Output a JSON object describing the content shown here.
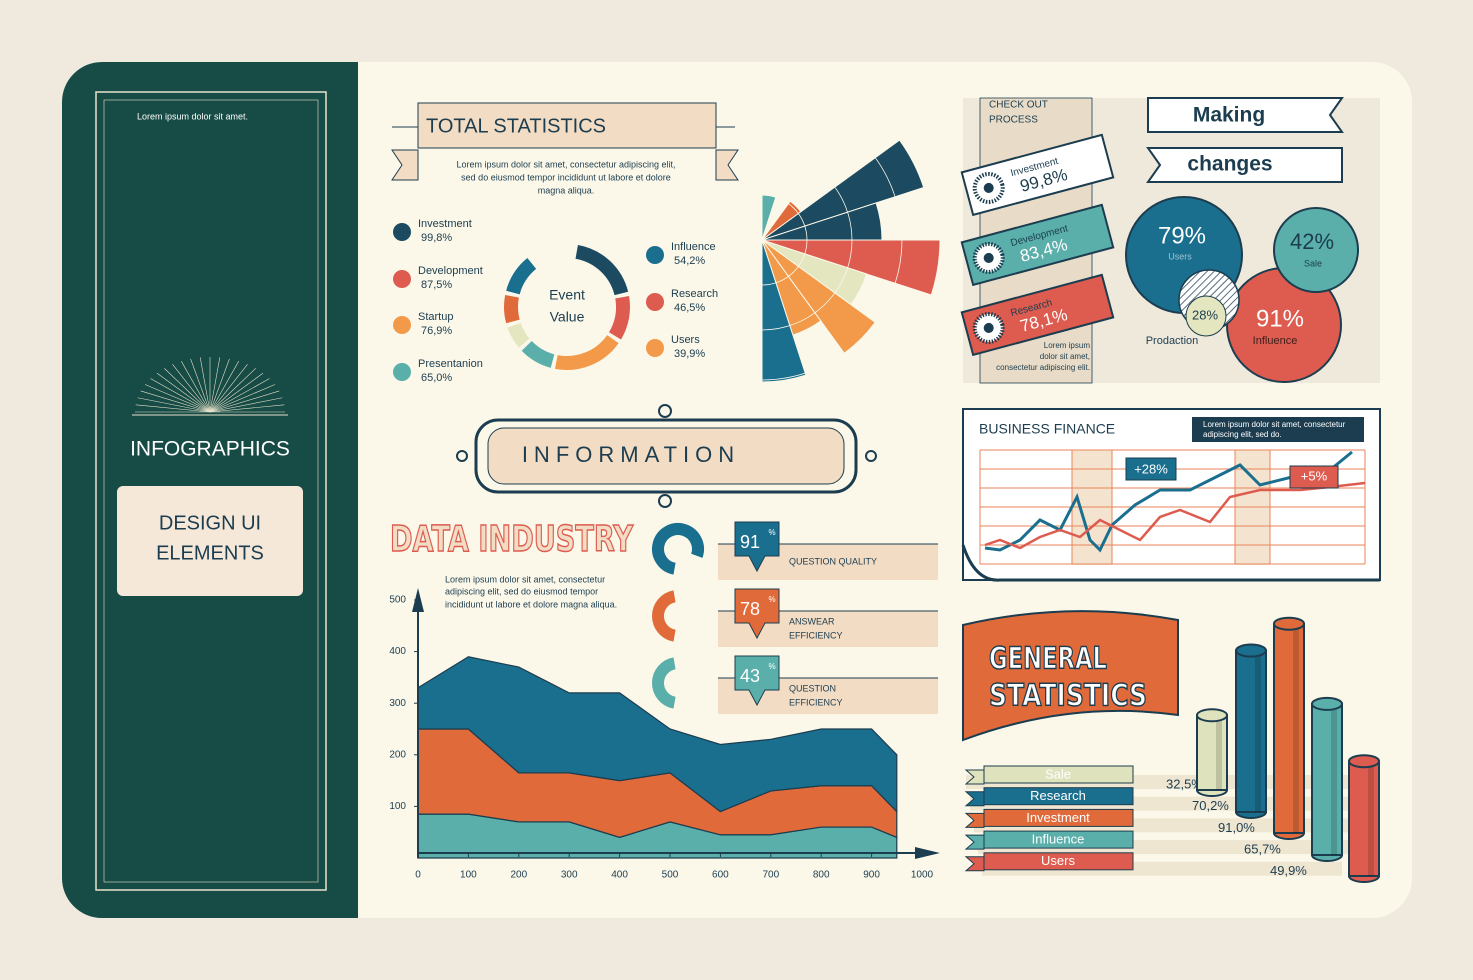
{
  "sidebar": {
    "note": "Lorem ipsum dolor sit amet.",
    "title": "INFOGRAPHICS",
    "button_lines": [
      "DESIGN UI",
      "ELEMENTS"
    ]
  },
  "total_statistics": {
    "title": "TOTAL STATISTICS",
    "text_lines": [
      "Lorem ipsum dolor sit amet, consectetur adipiscing elit,",
      "sed do eiusmod tempor incididunt ut labore et dolore",
      "magna aliqua."
    ],
    "center_lines": [
      "Event",
      "Value"
    ],
    "items": [
      {
        "label": "Investment",
        "value": "99,8%"
      },
      {
        "label": "Development",
        "value": "87,5%"
      },
      {
        "label": "Startup",
        "value": "76,9%"
      },
      {
        "label": "Presentanion",
        "value": "65,0%"
      },
      {
        "label": "Influence",
        "value": "54,2%"
      },
      {
        "label": "Research",
        "value": "46,5%"
      },
      {
        "label": "Users",
        "value": "39,9%"
      }
    ]
  },
  "check_out": {
    "title_lines": [
      "CHECK OUT",
      "PROCESS"
    ],
    "steps": [
      {
        "label": "Investment",
        "value": "99,8%"
      },
      {
        "label": "Development",
        "value": "83,4%"
      },
      {
        "label": "Research",
        "value": "78,1%"
      }
    ],
    "note_lines": [
      "Lorem ipsum",
      "dolor sit amet,",
      "consectetur adipiscing elit."
    ]
  },
  "making_changes": {
    "title_lines": [
      "Making",
      "changes"
    ],
    "circles": [
      {
        "value": "79%",
        "label": "Users"
      },
      {
        "value": "42%",
        "label": "Sale"
      },
      {
        "value": "28%",
        "label": "Prodaction"
      },
      {
        "value": "91%",
        "label": "Influence"
      }
    ]
  },
  "information": {
    "title": "INFORMATION"
  },
  "business_finance": {
    "title": "BUSINESS FINANCE",
    "note_lines": [
      "Lorem ipsum dolor sit amet, consectetur",
      "adipiscing elit, sed do."
    ],
    "annotations": [
      "+28%",
      "+5%"
    ]
  },
  "quality_gauges": [
    {
      "value": "91",
      "unit": "%",
      "label_lines": [
        "QUESTION QUALITY"
      ]
    },
    {
      "value": "78",
      "unit": "%",
      "label_lines": [
        "ANSWEAR",
        "EFFICIENCY"
      ]
    },
    {
      "value": "43",
      "unit": "%",
      "label_lines": [
        "QUESTION",
        "EFFICIENCY"
      ]
    }
  ],
  "chart_data": [
    {
      "type": "area",
      "title": "DATA INDUSTRY",
      "text_lines": [
        "Lorem ipsum dolor sit amet, consectetur",
        "adipiscing elit, sed do eiusmod tempor",
        "incididunt ut labore et dolore magna aliqua."
      ],
      "x": [
        0,
        100,
        200,
        300,
        400,
        500,
        600,
        700,
        800,
        900,
        950
      ],
      "series": [
        {
          "color": "#5aafaa",
          "values": [
            85,
            85,
            70,
            70,
            40,
            70,
            45,
            45,
            60,
            60,
            40
          ]
        },
        {
          "color": "#e06a3a",
          "values": [
            165,
            165,
            95,
            95,
            110,
            95,
            45,
            85,
            80,
            80,
            50
          ]
        },
        {
          "color": "#1a6e8e",
          "values": [
            80,
            140,
            205,
            155,
            170,
            85,
            130,
            100,
            110,
            110,
            110
          ]
        }
      ],
      "xlim": [
        0,
        1000
      ],
      "xticks": [
        0,
        100,
        200,
        300,
        400,
        500,
        600,
        700,
        800,
        900,
        1000
      ],
      "ylim": [
        0,
        500
      ],
      "yticks": [
        100,
        200,
        300,
        400,
        500
      ]
    },
    {
      "type": "bar",
      "title_lines": [
        "GENERAL",
        "STATISTICS"
      ],
      "categories": [
        "Sale",
        "Research",
        "Investment",
        "Influence",
        "Users"
      ],
      "values": [
        32.5,
        70.2,
        91.0,
        65.7,
        49.9
      ],
      "value_labels": [
        "32,5%",
        "70,2%",
        "91,0%",
        "65,7%",
        "49,9%"
      ],
      "colors": [
        "#dfe3bd",
        "#1a6e8e",
        "#e06a3a",
        "#5aafaa",
        "#dd5c4f"
      ]
    }
  ]
}
